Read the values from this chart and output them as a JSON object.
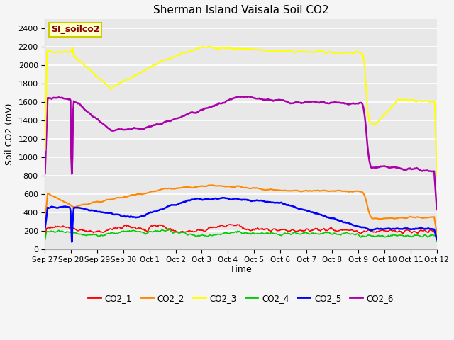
{
  "title": "Sherman Island Vaisala Soil CO2",
  "ylabel": "Soil CO2 (mV)",
  "xlabel": "Time",
  "label_text": "SI_soilco2",
  "ylim": [
    0,
    2500
  ],
  "plot_bg": "#e8e8e8",
  "fig_bg": "#f5f5f5",
  "grid_color": "#ffffff",
  "legend_labels": [
    "CO2_1",
    "CO2_2",
    "CO2_3",
    "CO2_4",
    "CO2_5",
    "CO2_6"
  ],
  "legend_colors": [
    "#ff0000",
    "#ff8800",
    "#ffff00",
    "#00cc00",
    "#0000ff",
    "#aa00aa"
  ],
  "line_widths": [
    1.2,
    1.5,
    1.5,
    1.2,
    1.8,
    1.8
  ],
  "date_labels": [
    "Sep 27",
    "Sep 28",
    "Sep 29",
    "Sep 30",
    "Oct 1",
    "Oct 2",
    "Oct 3",
    "Oct 4",
    "Oct 5",
    "Oct 6",
    "Oct 7",
    "Oct 8",
    "Oct 9",
    "Oct 10",
    "Oct 11",
    "Oct 12"
  ],
  "n_points": 600,
  "yticks": [
    0,
    200,
    400,
    600,
    800,
    1000,
    1200,
    1400,
    1600,
    1800,
    2000,
    2200,
    2400
  ]
}
